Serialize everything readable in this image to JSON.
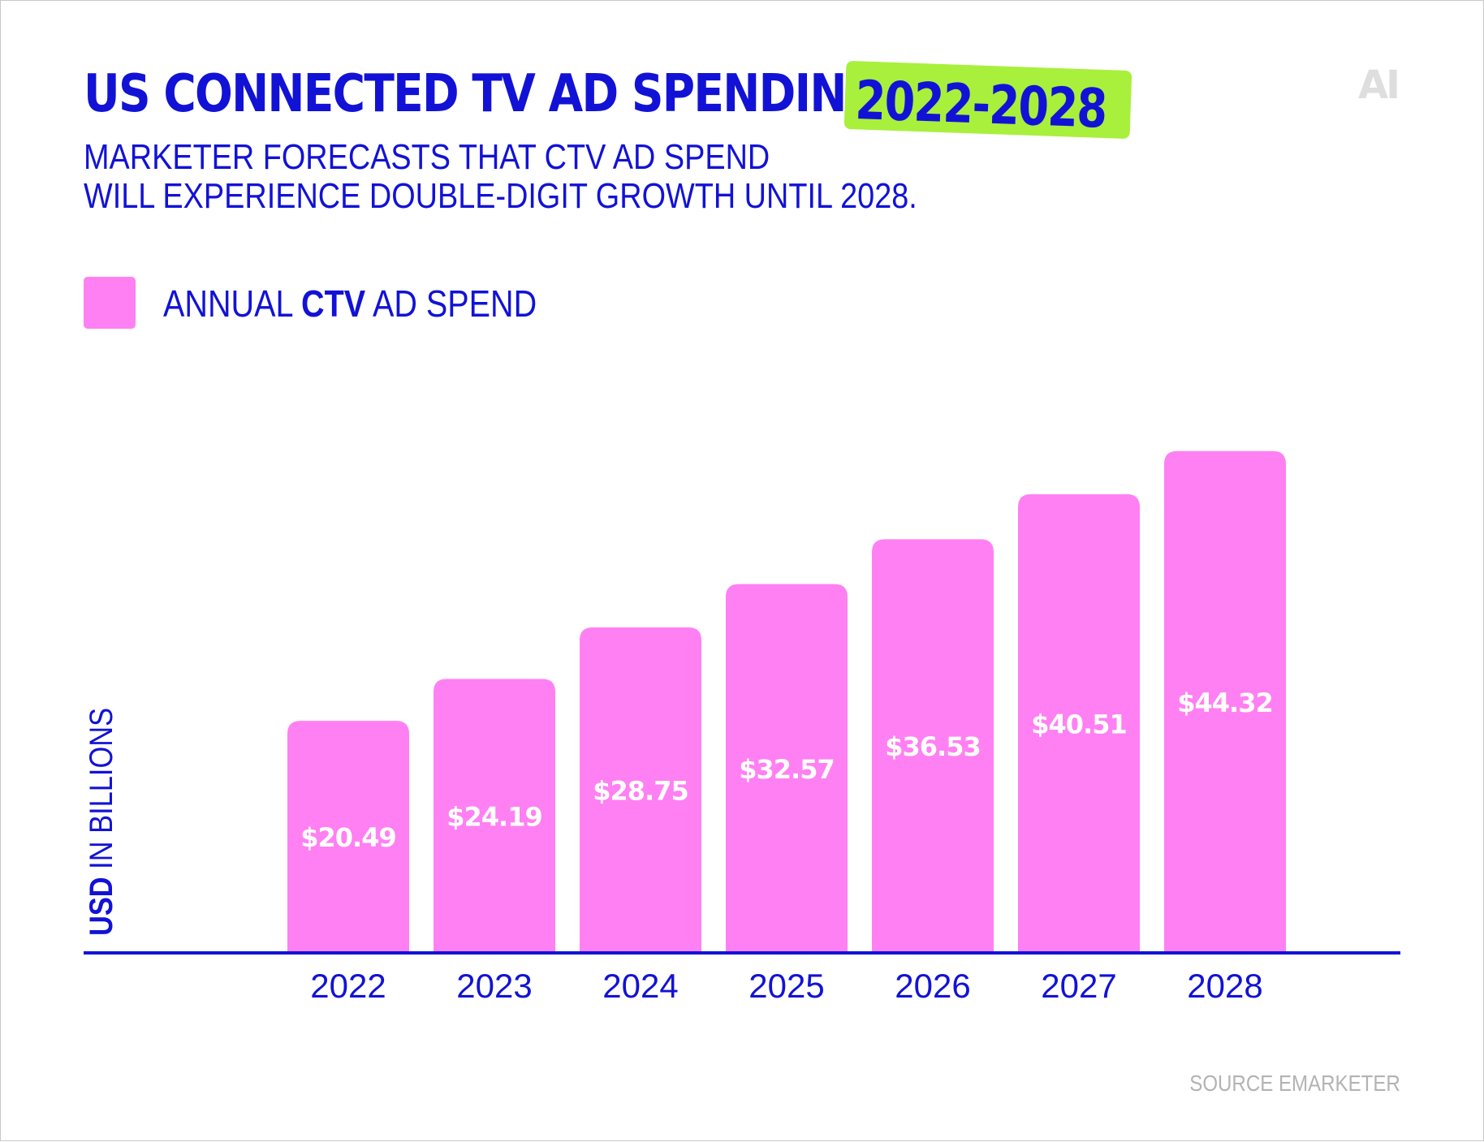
{
  "title": {
    "main": "US CONNECTED TV AD SPENDING",
    "years": "2022-2028"
  },
  "subtitle": {
    "line1": "MARKETER FORECASTS THAT CTV AD SPEND",
    "line2": "WILL EXPERIENCE DOUBLE-DIGIT GROWTH UNTIL 2028."
  },
  "logo": "AI",
  "legend": {
    "prefix": "ANNUAL ",
    "bold": "CTV",
    "suffix": " AD SPEND"
  },
  "ylabel": {
    "bold": "USD",
    "rest": " IN BILLIONS"
  },
  "source": "SOURCE EMARKETER",
  "colors": {
    "bar": "#ff80f2",
    "text": "#1212d6",
    "highlight": "#a8f03c",
    "bar_label": "#ffffff"
  },
  "chart_data": {
    "type": "bar",
    "title": "US CONNECTED TV AD SPENDING 2022-2028",
    "xlabel": "",
    "ylabel": "USD IN BILLIONS",
    "categories": [
      "2022",
      "2023",
      "2024",
      "2025",
      "2026",
      "2027",
      "2028"
    ],
    "values": [
      20.49,
      24.19,
      28.75,
      32.57,
      36.53,
      40.51,
      44.32
    ],
    "labels": [
      "$20.49",
      "$24.19",
      "$28.75",
      "$32.57",
      "$36.53",
      "$40.51",
      "$44.32"
    ],
    "series": [
      {
        "name": "ANNUAL CTV AD SPEND",
        "values": [
          20.49,
          24.19,
          28.75,
          32.57,
          36.53,
          40.51,
          44.32
        ]
      }
    ],
    "ylim": [
      0,
      45
    ],
    "grid": false,
    "legend_position": "top-left"
  }
}
